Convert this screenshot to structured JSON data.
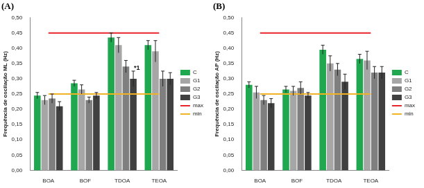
{
  "chart_data": [
    {
      "type": "bar",
      "title": "(A)",
      "y_label": "Frequência de oscilação ML (Hz)",
      "categories": [
        "BOA",
        "BOF",
        "TDOA",
        "TEOA"
      ],
      "ylim": [
        0,
        0.5
      ],
      "yticks": [
        {
          "value": 0,
          "label": "0,00"
        },
        {
          "value": 0.05,
          "label": "0,05"
        },
        {
          "value": 0.1,
          "label": "0,10"
        },
        {
          "value": 0.15,
          "label": "0,15"
        },
        {
          "value": 0.2,
          "label": "0,20"
        },
        {
          "value": 0.25,
          "label": "0,25"
        },
        {
          "value": 0.3,
          "label": "0,30"
        },
        {
          "value": 0.35,
          "label": "0,35"
        },
        {
          "value": 0.4,
          "label": "0,40"
        },
        {
          "value": 0.45,
          "label": "0,45"
        },
        {
          "value": 0.5,
          "label": "0,50"
        }
      ],
      "grid": false,
      "legend": "right",
      "series": [
        {
          "name": "C",
          "color": "#1fa84f",
          "values": [
            0.245,
            0.285,
            0.435,
            0.41
          ],
          "errors": [
            0.01,
            0.01,
            0.015,
            0.015
          ]
        },
        {
          "name": "G1",
          "color": "#a6a6a6",
          "values": [
            0.23,
            0.265,
            0.41,
            0.39
          ],
          "errors": [
            0.015,
            0.015,
            0.025,
            0.035
          ]
        },
        {
          "name": "G2",
          "color": "#7f7f7f",
          "values": [
            0.235,
            0.23,
            0.34,
            0.3
          ],
          "errors": [
            0.015,
            0.01,
            0.02,
            0.025
          ]
        },
        {
          "name": "G3",
          "color": "#404040",
          "values": [
            0.21,
            0.245,
            0.3,
            0.3
          ],
          "errors": [
            0.015,
            0.01,
            0.025,
            0.02
          ]
        },
        {
          "name": "max",
          "type": "line",
          "color": "#e8232a",
          "values": [
            0.45,
            0.45,
            0.45,
            0.45
          ]
        },
        {
          "name": "min",
          "type": "line",
          "color": "#f0b323",
          "values": [
            0.25,
            0.25,
            0.25,
            0.25
          ]
        }
      ],
      "annotations": [
        {
          "text": "*1",
          "series": "G3",
          "category": "TDOA"
        }
      ]
    },
    {
      "type": "bar",
      "title": "(B)",
      "y_label": "Frequência de oscilação AP (Hz)",
      "categories": [
        "BOA",
        "BOF",
        "TDOA",
        "TEOA"
      ],
      "ylim": [
        0,
        0.5
      ],
      "yticks": [
        {
          "value": 0,
          "label": "0,00"
        },
        {
          "value": 0.05,
          "label": "0,05"
        },
        {
          "value": 0.1,
          "label": "0,10"
        },
        {
          "value": 0.15,
          "label": "0,15"
        },
        {
          "value": 0.2,
          "label": "0,20"
        },
        {
          "value": 0.25,
          "label": "0,25"
        },
        {
          "value": 0.3,
          "label": "0,30"
        },
        {
          "value": 0.35,
          "label": "0,35"
        },
        {
          "value": 0.4,
          "label": "0,40"
        },
        {
          "value": 0.45,
          "label": "0,45"
        },
        {
          "value": 0.5,
          "label": "0,50"
        }
      ],
      "grid": false,
      "legend": "right",
      "series": [
        {
          "name": "C",
          "color": "#1fa84f",
          "values": [
            0.28,
            0.265,
            0.395,
            0.365
          ],
          "errors": [
            0.01,
            0.01,
            0.015,
            0.015
          ]
        },
        {
          "name": "G1",
          "color": "#a6a6a6",
          "values": [
            0.255,
            0.26,
            0.35,
            0.36
          ],
          "errors": [
            0.02,
            0.015,
            0.025,
            0.03
          ]
        },
        {
          "name": "G2",
          "color": "#7f7f7f",
          "values": [
            0.23,
            0.27,
            0.33,
            0.32
          ],
          "errors": [
            0.015,
            0.02,
            0.02,
            0.02
          ]
        },
        {
          "name": "G3",
          "color": "#404040",
          "values": [
            0.22,
            0.245,
            0.29,
            0.32
          ],
          "errors": [
            0.015,
            0.01,
            0.025,
            0.02
          ]
        },
        {
          "name": "max",
          "type": "line",
          "color": "#e8232a",
          "values": [
            0.45,
            0.45,
            0.45,
            0.45
          ]
        },
        {
          "name": "min",
          "type": "line",
          "color": "#f0b323",
          "values": [
            0.25,
            0.25,
            0.25,
            0.25
          ]
        }
      ]
    }
  ]
}
